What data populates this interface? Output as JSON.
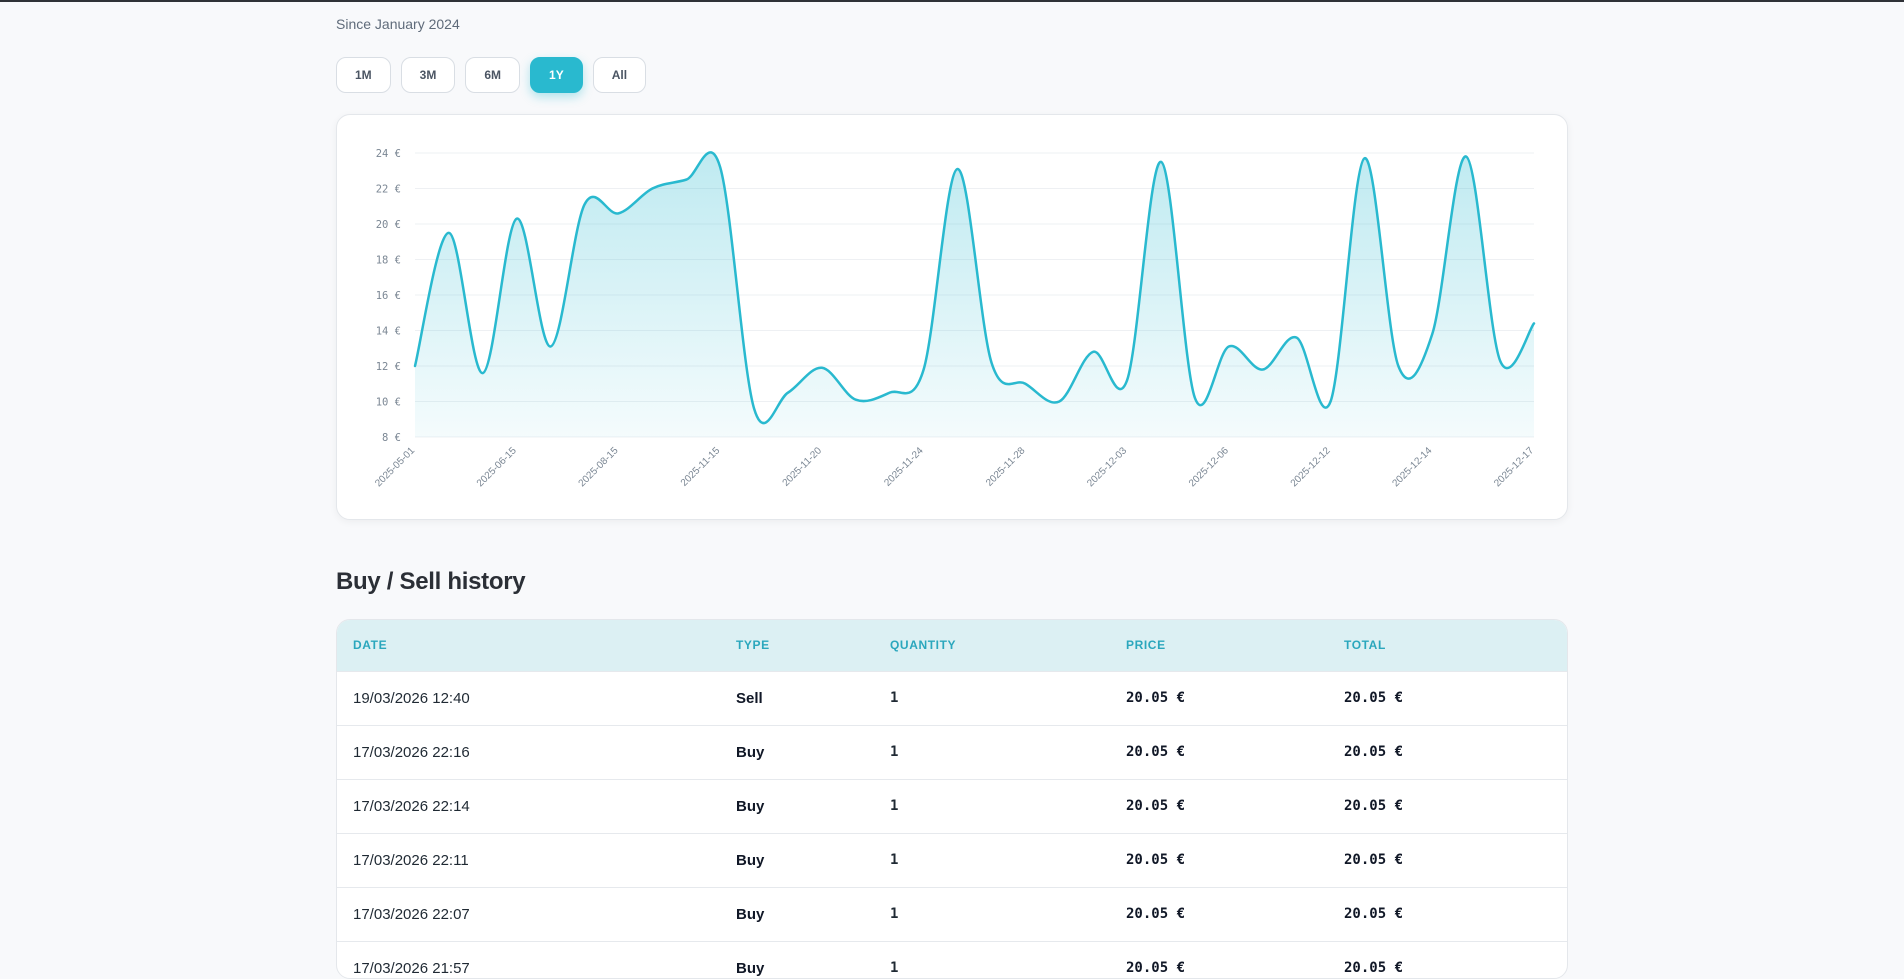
{
  "header": {
    "since_text": "Since January 2024"
  },
  "ranges": [
    {
      "label": "1M",
      "active": false
    },
    {
      "label": "3M",
      "active": false
    },
    {
      "label": "6M",
      "active": false
    },
    {
      "label": "1Y",
      "active": true
    },
    {
      "label": "All",
      "active": false
    }
  ],
  "colors": {
    "accent": "#29b9cf",
    "header_bg": "#dcf0f3",
    "header_text": "#2ba7bd"
  },
  "chart_data": {
    "type": "area",
    "ylim": [
      8,
      24
    ],
    "y_ticks": [
      8,
      10,
      12,
      14,
      16,
      18,
      20,
      22,
      24
    ],
    "y_tick_labels": [
      "8 €",
      "10 €",
      "12 €",
      "14 €",
      "16 €",
      "18 €",
      "20 €",
      "22 €",
      "24 €"
    ],
    "x_tick_labels": [
      "2025-05-01",
      "2025-06-15",
      "2025-08-15",
      "2025-11-15",
      "2025-11-20",
      "2025-11-24",
      "2025-11-28",
      "2025-12-03",
      "2025-12-06",
      "2025-12-12",
      "2025-12-14",
      "2025-12-17"
    ],
    "grid": true,
    "series": [
      {
        "values": [
          12.0,
          19.5,
          11.6,
          20.3,
          13.1,
          21.1,
          20.6,
          22.0,
          22.5,
          23.2,
          9.6,
          10.5,
          11.9,
          10.1,
          10.5,
          11.8,
          23.1,
          12.2,
          11.0,
          10.0,
          12.8,
          11.2,
          23.5,
          10.2,
          13.1,
          11.8,
          13.6,
          10.0,
          23.7,
          12.0,
          13.8,
          23.8,
          12.3,
          14.4
        ]
      }
    ]
  },
  "history": {
    "title": "Buy / Sell history",
    "columns": [
      "DATE",
      "TYPE",
      "QUANTITY",
      "PRICE",
      "TOTAL"
    ],
    "rows": [
      [
        "19/03/2026 12:40",
        "Sell",
        "1",
        "20.05 €",
        "20.05 €"
      ],
      [
        "17/03/2026 22:16",
        "Buy",
        "1",
        "20.05 €",
        "20.05 €"
      ],
      [
        "17/03/2026 22:14",
        "Buy",
        "1",
        "20.05 €",
        "20.05 €"
      ],
      [
        "17/03/2026 22:11",
        "Buy",
        "1",
        "20.05 €",
        "20.05 €"
      ],
      [
        "17/03/2026 22:07",
        "Buy",
        "1",
        "20.05 €",
        "20.05 €"
      ],
      [
        "17/03/2026 21:57",
        "Buy",
        "1",
        "20.05 €",
        "20.05 €"
      ]
    ]
  }
}
